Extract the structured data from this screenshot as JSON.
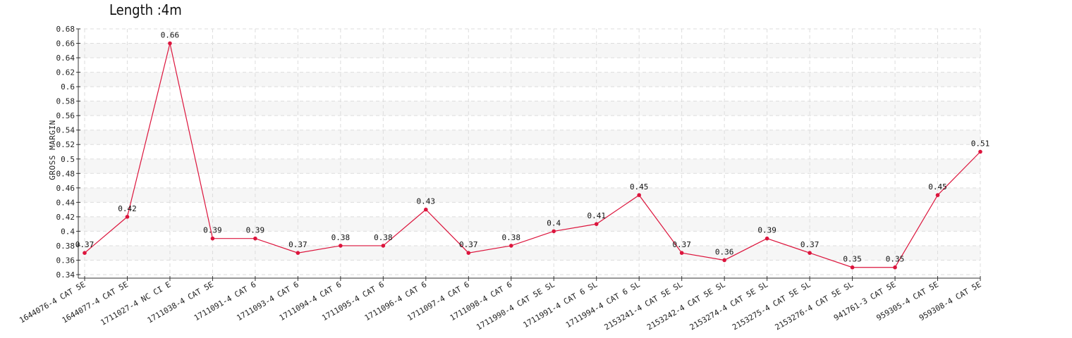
{
  "chart_data": {
    "type": "line",
    "title": "Length :4m",
    "xlabel": "",
    "ylabel": "GROSS MARGIN",
    "ylim": [
      0.34,
      0.68
    ],
    "y_ticks": [
      0.34,
      0.36,
      0.38,
      0.4,
      0.42,
      0.44,
      0.46,
      0.48,
      0.5,
      0.52,
      0.54,
      0.56,
      0.58,
      0.6,
      0.62,
      0.64,
      0.66,
      0.68
    ],
    "grid": true,
    "colors": {
      "line": "#dc143c",
      "grid": "#dddddd",
      "band": "#f6f6f6"
    },
    "categories": [
      "1644076-4 CAT 5E",
      "1644077-4 CAT 5E",
      "1711027-4 NC CI E",
      "1711038-4 CAT 5E",
      "1711091-4 CAT 6",
      "1711093-4 CAT 6",
      "1711094-4 CAT 6",
      "1711095-4 CAT 6",
      "1711096-4 CAT 6",
      "1711097-4 CAT 6",
      "1711098-4 CAT 6",
      "1711990-4 CAT 5E SL",
      "1711991-4 CAT 6 SL",
      "1711994-4 CAT 6 SL",
      "2153241-4 CAT 5E SL",
      "2153242-4 CAT 5E SL",
      "2153274-4 CAT 5E SL",
      "2153275-4 CAT 5E SL",
      "2153276-4 CAT 5E SL",
      "941761-3 CAT 5E",
      "959305-4 CAT 5E",
      "959308-4 CAT 5E"
    ],
    "series": [
      {
        "values": [
          0.37,
          0.42,
          0.66,
          0.39,
          0.39,
          0.37,
          0.38,
          0.38,
          0.43,
          0.37,
          0.38,
          0.4,
          0.41,
          0.45,
          0.37,
          0.36,
          0.39,
          0.37,
          0.35,
          0.35,
          0.45,
          0.51
        ],
        "labels": [
          "0.37",
          "0.42",
          "0.66",
          "0.39",
          "0.39",
          "0.37",
          "0.38",
          "0.38",
          "0.43",
          "0.37",
          "0.38",
          "0.4",
          "0.41",
          "0.45",
          "0.37",
          "0.36",
          "0.39",
          "0.37",
          "0.35",
          "0.35",
          "0.45",
          "0.51"
        ]
      }
    ]
  }
}
